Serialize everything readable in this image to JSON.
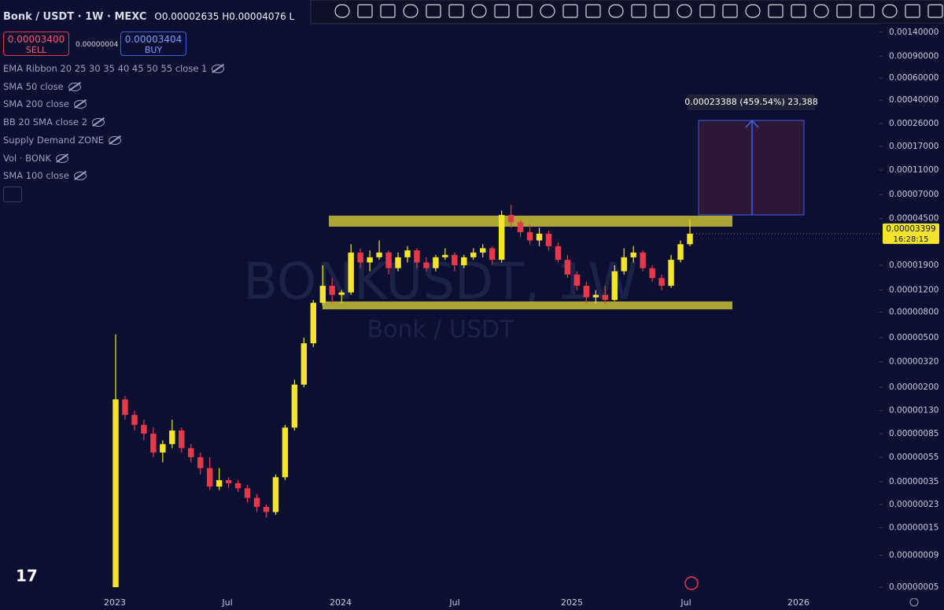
{
  "header": {
    "symbol": "Bonk / USDT · 1W · MEXC",
    "ohlc": "O0.00002635 H0.00004076 L"
  },
  "trade": {
    "sell_price": "0.00003400",
    "sell": "SELL",
    "spread": "0.00000004",
    "buy_price": "0.00003404",
    "buy": "BUY"
  },
  "indicators": [
    "EMA Ribbon 20 25 30 35 40 45 50 55 close 1",
    "SMA 50 close",
    "SMA 200 close",
    "BB 20 SMA close 2",
    "Supply Demand ZONE",
    "Vol · BONK",
    "SMA 100 close"
  ],
  "chart_data": {
    "type": "candlestick",
    "watermark": "BONKUSDT, 1W",
    "watermark_sub": "Bonk / USDT",
    "measure_label": "0.00023388 (459.54%) 23,388",
    "x_labels": [
      "2023",
      "Jul",
      "2024",
      "Jul",
      "2025",
      "Jul",
      "2026"
    ],
    "log_scale": true,
    "up_color": "#f5e52a",
    "down_color": "#e8394a",
    "ylim": [
      4.08e-08,
      0.00164
    ],
    "yticks": [
      {
        "value": 0.0014,
        "label": "0.00140000"
      },
      {
        "value": 0.0009,
        "label": "0.00090000"
      },
      {
        "value": 0.0006,
        "label": "0.00060000"
      },
      {
        "value": 0.0004,
        "label": "0.00040000"
      },
      {
        "value": 0.00026,
        "label": "0.00026000"
      },
      {
        "value": 0.00017,
        "label": "0.00017000"
      },
      {
        "value": 0.00011,
        "label": "0.00011000"
      },
      {
        "value": 7e-05,
        "label": "0.00007000"
      },
      {
        "value": 4.5e-05,
        "label": "0.00004500"
      },
      {
        "value": 1.9e-05,
        "label": "0.00001900"
      },
      {
        "value": 1.2e-05,
        "label": "0.00001200"
      },
      {
        "value": 8e-06,
        "label": "0.00000800"
      },
      {
        "value": 5e-06,
        "label": "0.00000500"
      },
      {
        "value": 3.2e-06,
        "label": "0.00000320"
      },
      {
        "value": 2e-06,
        "label": "0.00000200"
      },
      {
        "value": 1.3e-06,
        "label": "0.00000130"
      },
      {
        "value": 8.5e-07,
        "label": "0.00000085"
      },
      {
        "value": 5.5e-07,
        "label": "0.00000055"
      },
      {
        "value": 3.5e-07,
        "label": "0.00000035"
      },
      {
        "value": 2.3e-07,
        "label": "0.00000023"
      },
      {
        "value": 1.5e-07,
        "label": "0.00000015"
      },
      {
        "value": 9e-08,
        "label": "0.00000009"
      },
      {
        "value": 5e-08,
        "label": "0.00000005"
      }
    ],
    "last_price": {
      "value": 3.399e-05,
      "label": "0.00003399"
    },
    "countdown": "16:28:15",
    "candles": [
      [
        5e-08,
        5.3e-06,
        5e-08,
        1.6e-06
      ],
      [
        1.6e-06,
        1.7e-06,
        1.1e-06,
        1.2e-06
      ],
      [
        1.2e-06,
        1.3e-06,
        9e-07,
        1e-06
      ],
      [
        1e-06,
        1.1e-06,
        7.5e-07,
        8.5e-07
      ],
      [
        8.5e-07,
        9.5e-07,
        5.5e-07,
        6e-07
      ],
      [
        6e-07,
        7.5e-07,
        5e-07,
        7e-07
      ],
      [
        7e-07,
        1.1e-06,
        6.5e-07,
        9e-07
      ],
      [
        9e-07,
        9.5e-07,
        6e-07,
        6.5e-07
      ],
      [
        6.5e-07,
        7e-07,
        5e-07,
        5.5e-07
      ],
      [
        5.5e-07,
        6e-07,
        4e-07,
        4.5e-07
      ],
      [
        4.5e-07,
        5.5e-07,
        3e-07,
        3.2e-07
      ],
      [
        3.2e-07,
        4.5e-07,
        3e-07,
        3.6e-07
      ],
      [
        3.6e-07,
        3.8e-07,
        3.1e-07,
        3.4e-07
      ],
      [
        3.4e-07,
        3.6e-07,
        2.9e-07,
        3.1e-07
      ],
      [
        3.1e-07,
        3.3e-07,
        2.4e-07,
        2.6e-07
      ],
      [
        2.6e-07,
        2.8e-07,
        2e-07,
        2.2e-07
      ],
      [
        2.2e-07,
        2.3e-07,
        1.8e-07,
        2e-07
      ],
      [
        2e-07,
        4e-07,
        1.9e-07,
        3.8e-07
      ],
      [
        3.8e-07,
        1e-06,
        3.6e-07,
        9.5e-07
      ],
      [
        9.5e-07,
        2.3e-06,
        9e-07,
        2.1e-06
      ],
      [
        2.1e-06,
        5e-06,
        2e-06,
        4.5e-06
      ],
      [
        4.5e-06,
        1e-05,
        4.2e-06,
        9.5e-06
      ],
      [
        9.5e-06,
        1.9e-05,
        9e-06,
        1.3e-05
      ],
      [
        1.3e-05,
        1.5e-05,
        9.5e-06,
        1.1e-05
      ],
      [
        1.1e-05,
        1.2e-05,
        9.5e-06,
        1.15e-05
      ],
      [
        1.15e-05,
        2.8e-05,
        1.1e-05,
        2.4e-05
      ],
      [
        2.4e-05,
        2.6e-05,
        1.8e-05,
        2e-05
      ],
      [
        2e-05,
        2.5e-05,
        1.7e-05,
        2.2e-05
      ],
      [
        2.2e-05,
        3e-05,
        2.1e-05,
        2.4e-05
      ],
      [
        2.4e-05,
        2.5e-05,
        1.6e-05,
        1.8e-05
      ],
      [
        1.8e-05,
        2.4e-05,
        1.7e-05,
        2.2e-05
      ],
      [
        2.2e-05,
        2.7e-05,
        2e-05,
        2.5e-05
      ],
      [
        2.5e-05,
        2.6e-05,
        1.8e-05,
        2e-05
      ],
      [
        2e-05,
        2.2e-05,
        1.7e-05,
        1.8e-05
      ],
      [
        1.8e-05,
        2.3e-05,
        1.7e-05,
        2.2e-05
      ],
      [
        2.2e-05,
        2.6e-05,
        2.1e-05,
        2.3e-05
      ],
      [
        2.3e-05,
        2.4e-05,
        1.7e-05,
        1.9e-05
      ],
      [
        1.9e-05,
        2.3e-05,
        1.8e-05,
        2.2e-05
      ],
      [
        2.2e-05,
        2.6e-05,
        2.1e-05,
        2.4e-05
      ],
      [
        2.4e-05,
        2.8e-05,
        2.2e-05,
        2.6e-05
      ],
      [
        2.6e-05,
        2.7e-05,
        1.9e-05,
        2.1e-05
      ],
      [
        2.1e-05,
        5.2e-05,
        2e-05,
        4.8e-05
      ],
      [
        4.8e-05,
        5.8e-05,
        3.8e-05,
        4.2e-05
      ],
      [
        4.2e-05,
        4.4e-05,
        3.2e-05,
        3.5e-05
      ],
      [
        3.5e-05,
        4e-05,
        2.8e-05,
        3e-05
      ],
      [
        3e-05,
        3.8e-05,
        2.7e-05,
        3.4e-05
      ],
      [
        3.4e-05,
        3.6e-05,
        2.5e-05,
        2.7e-05
      ],
      [
        2.7e-05,
        2.9e-05,
        2e-05,
        2.1e-05
      ],
      [
        2.1e-05,
        2.3e-05,
        1.5e-05,
        1.6e-05
      ],
      [
        1.6e-05,
        1.7e-05,
        1.2e-05,
        1.3e-05
      ],
      [
        1.3e-05,
        1.4e-05,
        9.5e-06,
        1.05e-05
      ],
      [
        1.05e-05,
        1.2e-05,
        9.4e-06,
        1.1e-05
      ],
      [
        1.1e-05,
        1.3e-05,
        9.3e-06,
        1e-05
      ],
      [
        1e-05,
        1.9e-05,
        9.8e-06,
        1.7e-05
      ],
      [
        1.7e-05,
        2.6e-05,
        1.6e-05,
        2.2e-05
      ],
      [
        2.2e-05,
        2.7e-05,
        2e-05,
        2.4e-05
      ],
      [
        2.4e-05,
        2.5e-05,
        1.7e-05,
        1.8e-05
      ],
      [
        1.8e-05,
        1.9e-05,
        1.4e-05,
        1.5e-05
      ],
      [
        1.5e-05,
        1.6e-05,
        1.2e-05,
        1.3e-05
      ],
      [
        1.3e-05,
        2.3e-05,
        1.25e-05,
        2.1e-05
      ],
      [
        2.1e-05,
        3e-05,
        2e-05,
        2.8e-05
      ],
      [
        2.8e-05,
        4.4e-05,
        2.7e-05,
        3.4e-05
      ]
    ]
  }
}
